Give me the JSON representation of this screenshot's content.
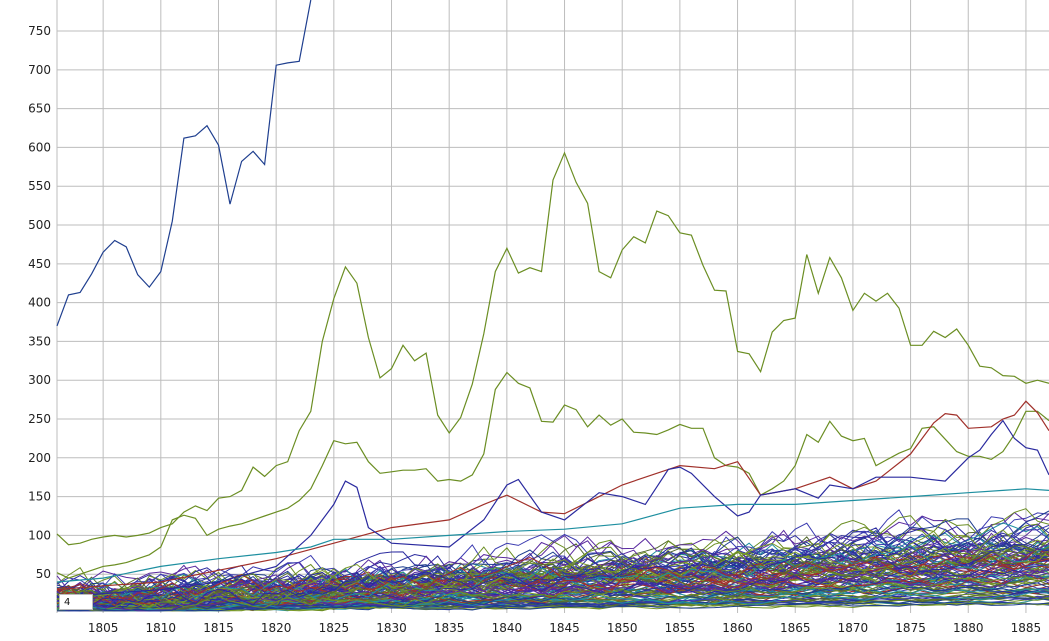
{
  "chart_data": {
    "type": "line",
    "title": "",
    "xlabel": "",
    "ylabel": "",
    "xlim": [
      1801,
      1887
    ],
    "ylim": [
      0,
      790
    ],
    "grid": true,
    "x_ticks": [
      1805,
      1810,
      1815,
      1820,
      1825,
      1830,
      1835,
      1840,
      1845,
      1850,
      1855,
      1860,
      1865,
      1870,
      1875,
      1880,
      1885
    ],
    "y_ticks": [
      50,
      100,
      150,
      200,
      250,
      300,
      350,
      400,
      450,
      500,
      550,
      600,
      650,
      700,
      750
    ],
    "series": [
      {
        "color": "#1f3f8f",
        "points": [
          [
            1801,
            370
          ],
          [
            1802,
            410
          ],
          [
            1803,
            413
          ],
          [
            1804,
            437
          ],
          [
            1805,
            465
          ],
          [
            1806,
            480
          ],
          [
            1807,
            472
          ],
          [
            1808,
            436
          ],
          [
            1809,
            420
          ],
          [
            1810,
            440
          ],
          [
            1811,
            505
          ],
          [
            1812,
            612
          ],
          [
            1813,
            615
          ],
          [
            1814,
            628
          ],
          [
            1815,
            603
          ],
          [
            1816,
            527
          ],
          [
            1817,
            582
          ],
          [
            1818,
            595
          ],
          [
            1819,
            578
          ],
          [
            1820,
            706
          ],
          [
            1821,
            709
          ],
          [
            1822,
            711
          ],
          [
            1823,
            790
          ]
        ]
      },
      {
        "color": "#6b8e23",
        "points": [
          [
            1801,
            102
          ],
          [
            1802,
            88
          ],
          [
            1803,
            90
          ],
          [
            1804,
            95
          ],
          [
            1805,
            98
          ],
          [
            1806,
            100
          ],
          [
            1807,
            98
          ],
          [
            1808,
            100
          ],
          [
            1809,
            103
          ],
          [
            1810,
            110
          ],
          [
            1811,
            115
          ],
          [
            1812,
            130
          ],
          [
            1813,
            138
          ],
          [
            1814,
            132
          ],
          [
            1815,
            148
          ],
          [
            1816,
            150
          ],
          [
            1817,
            158
          ],
          [
            1818,
            188
          ],
          [
            1819,
            176
          ],
          [
            1820,
            190
          ],
          [
            1821,
            195
          ],
          [
            1822,
            235
          ],
          [
            1823,
            260
          ],
          [
            1824,
            350
          ],
          [
            1825,
            405
          ],
          [
            1826,
            446
          ],
          [
            1827,
            425
          ],
          [
            1828,
            355
          ],
          [
            1829,
            303
          ],
          [
            1830,
            315
          ],
          [
            1831,
            345
          ],
          [
            1832,
            325
          ],
          [
            1833,
            335
          ],
          [
            1834,
            255
          ],
          [
            1835,
            232
          ],
          [
            1836,
            252
          ],
          [
            1837,
            295
          ],
          [
            1838,
            360
          ],
          [
            1839,
            440
          ],
          [
            1840,
            470
          ],
          [
            1841,
            438
          ],
          [
            1842,
            445
          ],
          [
            1843,
            440
          ],
          [
            1844,
            558
          ],
          [
            1845,
            593
          ],
          [
            1846,
            555
          ],
          [
            1847,
            528
          ],
          [
            1848,
            440
          ],
          [
            1849,
            432
          ],
          [
            1850,
            468
          ],
          [
            1851,
            485
          ],
          [
            1852,
            477
          ],
          [
            1853,
            518
          ],
          [
            1854,
            512
          ],
          [
            1855,
            490
          ],
          [
            1856,
            487
          ],
          [
            1857,
            448
          ],
          [
            1858,
            416
          ],
          [
            1859,
            415
          ],
          [
            1860,
            337
          ],
          [
            1861,
            334
          ],
          [
            1862,
            311
          ],
          [
            1863,
            362
          ],
          [
            1864,
            377
          ],
          [
            1865,
            380
          ],
          [
            1866,
            462
          ],
          [
            1867,
            412
          ],
          [
            1868,
            458
          ],
          [
            1869,
            432
          ],
          [
            1870,
            390
          ],
          [
            1871,
            412
          ],
          [
            1872,
            402
          ],
          [
            1873,
            412
          ],
          [
            1874,
            393
          ],
          [
            1875,
            345
          ],
          [
            1876,
            345
          ],
          [
            1877,
            363
          ],
          [
            1878,
            355
          ],
          [
            1879,
            366
          ],
          [
            1880,
            345
          ],
          [
            1881,
            318
          ],
          [
            1882,
            316
          ],
          [
            1883,
            306
          ],
          [
            1884,
            305
          ],
          [
            1885,
            296
          ],
          [
            1886,
            300
          ],
          [
            1887,
            296
          ]
        ]
      },
      {
        "color": "#6b8e23",
        "points": [
          [
            1801,
            52
          ],
          [
            1802,
            45
          ],
          [
            1803,
            50
          ],
          [
            1804,
            55
          ],
          [
            1805,
            60
          ],
          [
            1806,
            62
          ],
          [
            1807,
            65
          ],
          [
            1808,
            70
          ],
          [
            1809,
            75
          ],
          [
            1810,
            85
          ],
          [
            1811,
            120
          ],
          [
            1812,
            126
          ],
          [
            1813,
            122
          ],
          [
            1814,
            100
          ],
          [
            1815,
            108
          ],
          [
            1816,
            112
          ],
          [
            1817,
            115
          ],
          [
            1818,
            120
          ],
          [
            1819,
            125
          ],
          [
            1820,
            130
          ],
          [
            1821,
            135
          ],
          [
            1822,
            145
          ],
          [
            1823,
            160
          ],
          [
            1824,
            190
          ],
          [
            1825,
            222
          ],
          [
            1826,
            218
          ],
          [
            1827,
            220
          ],
          [
            1828,
            195
          ],
          [
            1829,
            180
          ],
          [
            1830,
            182
          ],
          [
            1831,
            184
          ],
          [
            1832,
            184
          ],
          [
            1833,
            186
          ],
          [
            1834,
            170
          ],
          [
            1835,
            172
          ],
          [
            1836,
            170
          ],
          [
            1837,
            178
          ],
          [
            1838,
            205
          ],
          [
            1839,
            288
          ],
          [
            1840,
            310
          ],
          [
            1841,
            296
          ],
          [
            1842,
            290
          ],
          [
            1843,
            247
          ],
          [
            1844,
            246
          ],
          [
            1845,
            268
          ],
          [
            1846,
            262
          ],
          [
            1847,
            240
          ],
          [
            1848,
            255
          ],
          [
            1849,
            242
          ],
          [
            1850,
            250
          ],
          [
            1851,
            233
          ],
          [
            1852,
            232
          ],
          [
            1853,
            230
          ],
          [
            1854,
            236
          ],
          [
            1855,
            243
          ],
          [
            1856,
            238
          ],
          [
            1857,
            238
          ],
          [
            1858,
            200
          ],
          [
            1859,
            190
          ],
          [
            1860,
            188
          ],
          [
            1861,
            180
          ],
          [
            1862,
            152
          ],
          [
            1863,
            160
          ],
          [
            1864,
            170
          ],
          [
            1865,
            190
          ],
          [
            1866,
            230
          ],
          [
            1867,
            220
          ],
          [
            1868,
            247
          ],
          [
            1869,
            228
          ],
          [
            1870,
            222
          ],
          [
            1871,
            225
          ],
          [
            1872,
            190
          ],
          [
            1873,
            198
          ],
          [
            1874,
            206
          ],
          [
            1875,
            212
          ],
          [
            1876,
            238
          ],
          [
            1877,
            240
          ],
          [
            1878,
            224
          ],
          [
            1879,
            208
          ],
          [
            1880,
            202
          ],
          [
            1881,
            202
          ],
          [
            1882,
            198
          ],
          [
            1883,
            208
          ],
          [
            1884,
            230
          ],
          [
            1885,
            260
          ],
          [
            1886,
            260
          ],
          [
            1887,
            248
          ]
        ]
      },
      {
        "color": "#a0302a",
        "points": [
          [
            1801,
            30
          ],
          [
            1805,
            35
          ],
          [
            1810,
            40
          ],
          [
            1815,
            55
          ],
          [
            1820,
            70
          ],
          [
            1825,
            90
          ],
          [
            1830,
            110
          ],
          [
            1835,
            120
          ],
          [
            1838,
            140
          ],
          [
            1840,
            152
          ],
          [
            1843,
            130
          ],
          [
            1845,
            128
          ],
          [
            1848,
            150
          ],
          [
            1850,
            165
          ],
          [
            1853,
            180
          ],
          [
            1855,
            190
          ],
          [
            1858,
            186
          ],
          [
            1860,
            195
          ],
          [
            1862,
            152
          ],
          [
            1865,
            160
          ],
          [
            1868,
            175
          ],
          [
            1870,
            160
          ],
          [
            1872,
            170
          ],
          [
            1875,
            205
          ],
          [
            1877,
            245
          ],
          [
            1878,
            257
          ],
          [
            1879,
            255
          ],
          [
            1880,
            238
          ],
          [
            1882,
            240
          ],
          [
            1883,
            250
          ],
          [
            1884,
            255
          ],
          [
            1885,
            273
          ],
          [
            1886,
            258
          ],
          [
            1887,
            235
          ]
        ]
      },
      {
        "color": "#2a2a9f",
        "points": [
          [
            1801,
            20
          ],
          [
            1805,
            25
          ],
          [
            1810,
            30
          ],
          [
            1815,
            40
          ],
          [
            1820,
            60
          ],
          [
            1823,
            100
          ],
          [
            1825,
            140
          ],
          [
            1826,
            170
          ],
          [
            1827,
            162
          ],
          [
            1828,
            110
          ],
          [
            1830,
            90
          ],
          [
            1835,
            85
          ],
          [
            1838,
            120
          ],
          [
            1840,
            165
          ],
          [
            1841,
            172
          ],
          [
            1843,
            130
          ],
          [
            1845,
            120
          ],
          [
            1848,
            155
          ],
          [
            1850,
            150
          ],
          [
            1852,
            140
          ],
          [
            1854,
            185
          ],
          [
            1855,
            188
          ],
          [
            1856,
            180
          ],
          [
            1858,
            150
          ],
          [
            1860,
            125
          ],
          [
            1861,
            130
          ],
          [
            1862,
            152
          ],
          [
            1865,
            160
          ],
          [
            1867,
            148
          ],
          [
            1868,
            165
          ],
          [
            1870,
            160
          ],
          [
            1872,
            175
          ],
          [
            1875,
            175
          ],
          [
            1878,
            170
          ],
          [
            1880,
            200
          ],
          [
            1881,
            210
          ],
          [
            1882,
            230
          ],
          [
            1883,
            248
          ],
          [
            1884,
            225
          ],
          [
            1885,
            213
          ],
          [
            1886,
            210
          ],
          [
            1887,
            178
          ]
        ]
      },
      {
        "color": "#1e8fa0",
        "points": [
          [
            1801,
            40
          ],
          [
            1805,
            45
          ],
          [
            1810,
            60
          ],
          [
            1815,
            70
          ],
          [
            1820,
            78
          ],
          [
            1823,
            85
          ],
          [
            1825,
            95
          ],
          [
            1830,
            95
          ],
          [
            1835,
            100
          ],
          [
            1840,
            105
          ],
          [
            1845,
            108
          ],
          [
            1850,
            115
          ],
          [
            1855,
            135
          ],
          [
            1860,
            140
          ],
          [
            1865,
            140
          ],
          [
            1870,
            145
          ],
          [
            1875,
            150
          ],
          [
            1880,
            155
          ],
          [
            1883,
            158
          ],
          [
            1885,
            160
          ],
          [
            1887,
            158
          ]
        ]
      }
    ]
  },
  "zoom_box": {
    "value": "4"
  }
}
